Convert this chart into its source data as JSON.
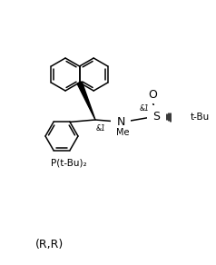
{
  "background_color": "#ffffff",
  "line_color": "#000000",
  "text_color": "#000000",
  "figsize": [
    2.38,
    2.92
  ],
  "dpi": 100,
  "label_RR": "(R,R)",
  "label_P": "P(t-Bu)₂",
  "label_N": "N",
  "label_Me": "Me",
  "label_S": "S",
  "label_O": "O",
  "label_tBu": "t-Bu",
  "label_c1": "&1",
  "label_c1b": "&1"
}
